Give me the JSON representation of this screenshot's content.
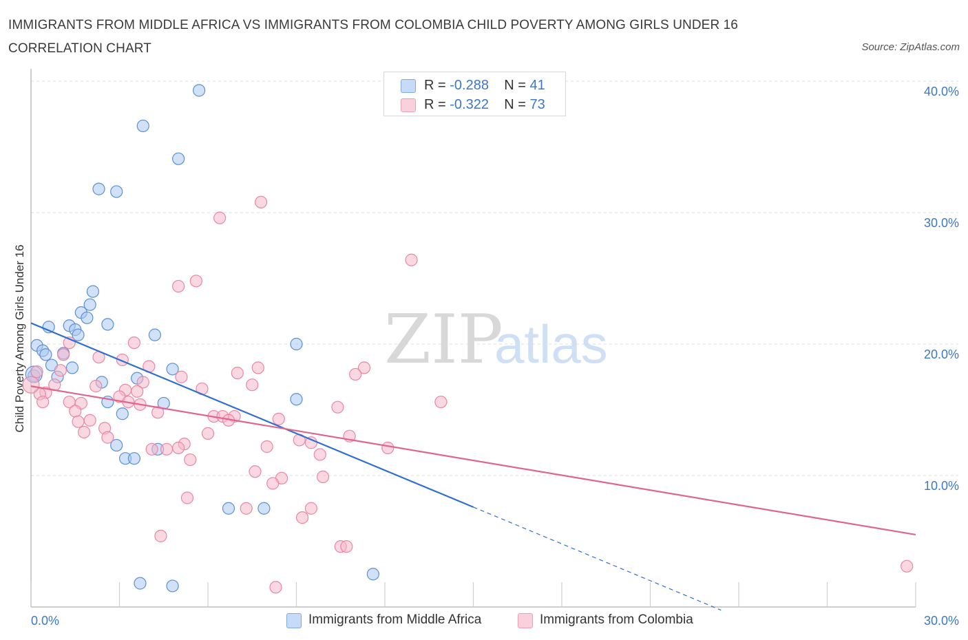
{
  "title": "IMMIGRANTS FROM MIDDLE AFRICA VS IMMIGRANTS FROM COLOMBIA CHILD POVERTY AMONG GIRLS UNDER 16 CORRELATION CHART",
  "source": "Source: ZipAtlas.com",
  "watermark": {
    "zip": "ZIP",
    "atlas": "atlas"
  },
  "legend_top": {
    "rows": [
      {
        "r_label": "R =",
        "r_value": "-0.288",
        "n_label": "N =",
        "n_value": "41",
        "color": "#a9c8f3"
      },
      {
        "r_label": "R =",
        "r_value": "-0.322",
        "n_label": "N =",
        "n_value": "73",
        "color": "#f6b8ca"
      }
    ]
  },
  "legend_bottom": [
    {
      "label": "Immigrants from Middle Africa",
      "color": "#a9c8f3"
    },
    {
      "label": "Immigrants from Colombia",
      "color": "#f6b8ca"
    }
  ],
  "chart_data": {
    "type": "scatter",
    "title": "IMMIGRANTS FROM MIDDLE AFRICA VS IMMIGRANTS FROM COLOMBIA CHILD POVERTY AMONG GIRLS UNDER 16 CORRELATION CHART",
    "xlabel": "",
    "ylabel": "Child Poverty Among Girls Under 16",
    "xlim": [
      0,
      30
    ],
    "ylim": [
      0,
      40
    ],
    "x_tick_labels": [
      "0.0%",
      "30.0%"
    ],
    "y_ticks": [
      10,
      20,
      30,
      40
    ],
    "y_tick_labels": [
      "10.0%",
      "20.0%",
      "30.0%",
      "40.0%"
    ],
    "grid": true,
    "series": [
      {
        "name": "Immigrants from Middle Africa",
        "color": "#a9c8f3",
        "stroke": "#5b8fd6",
        "line_color": "#2f6fd0",
        "trend": {
          "x0": 0,
          "y0": 21.6,
          "x1": 15,
          "y1": 7.6,
          "dash_to_x": 23.4
        },
        "points": [
          [
            5.7,
            39.3
          ],
          [
            3.8,
            36.6
          ],
          [
            5.0,
            34.1
          ],
          [
            2.3,
            31.8
          ],
          [
            2.9,
            31.6
          ],
          [
            2.1,
            24.0
          ],
          [
            2.0,
            23.0
          ],
          [
            1.7,
            22.4
          ],
          [
            1.9,
            22.0
          ],
          [
            1.3,
            21.4
          ],
          [
            2.6,
            21.5
          ],
          [
            0.6,
            21.3
          ],
          [
            1.5,
            21.1
          ],
          [
            1.6,
            20.7
          ],
          [
            4.2,
            20.7
          ],
          [
            0.2,
            19.9
          ],
          [
            0.4,
            19.5
          ],
          [
            0.5,
            19.2
          ],
          [
            1.1,
            19.3
          ],
          [
            0.7,
            18.4
          ],
          [
            1.4,
            18.2
          ],
          [
            9.0,
            20.0
          ],
          [
            4.8,
            18.1
          ],
          [
            0.1,
            17.6
          ],
          [
            0.9,
            17.5
          ],
          [
            2.4,
            17.1
          ],
          [
            3.6,
            17.4
          ],
          [
            2.6,
            15.6
          ],
          [
            4.5,
            15.5
          ],
          [
            3.1,
            14.7
          ],
          [
            9.0,
            15.8
          ],
          [
            2.9,
            12.3
          ],
          [
            4.3,
            12.0
          ],
          [
            3.2,
            11.3
          ],
          [
            3.5,
            11.3
          ],
          [
            6.7,
            7.5
          ],
          [
            7.9,
            7.5
          ],
          [
            11.6,
            2.5
          ],
          [
            3.7,
            1.8
          ],
          [
            4.8,
            1.6
          ],
          [
            0.1,
            17.7
          ]
        ]
      },
      {
        "name": "Immigrants from Colombia",
        "color": "#f6b8ca",
        "stroke": "#e986a6",
        "line_color": "#e0648f",
        "trend": {
          "x0": 0,
          "y0": 16.8,
          "x1": 30,
          "y1": 5.5
        },
        "points": [
          [
            7.8,
            30.8
          ],
          [
            6.4,
            29.6
          ],
          [
            12.9,
            26.4
          ],
          [
            5.6,
            24.8
          ],
          [
            5.0,
            24.4
          ],
          [
            1.3,
            20.1
          ],
          [
            3.5,
            20.1
          ],
          [
            1.1,
            19.2
          ],
          [
            2.3,
            19.0
          ],
          [
            3.1,
            18.8
          ],
          [
            4.0,
            18.3
          ],
          [
            7.7,
            18.2
          ],
          [
            11.3,
            18.2
          ],
          [
            1.0,
            18.0
          ],
          [
            0.2,
            17.9
          ],
          [
            7.0,
            17.8
          ],
          [
            11.0,
            17.7
          ],
          [
            5.1,
            17.5
          ],
          [
            3.8,
            17.1
          ],
          [
            0.8,
            16.9
          ],
          [
            2.2,
            16.8
          ],
          [
            7.5,
            16.9
          ],
          [
            5.8,
            16.6
          ],
          [
            3.2,
            16.5
          ],
          [
            0.5,
            16.3
          ],
          [
            3.6,
            16.4
          ],
          [
            0.3,
            16.2
          ],
          [
            3.0,
            16.0
          ],
          [
            3.3,
            15.6
          ],
          [
            1.3,
            15.6
          ],
          [
            1.7,
            15.5
          ],
          [
            3.7,
            15.4
          ],
          [
            13.9,
            15.6
          ],
          [
            0.4,
            15.6
          ],
          [
            10.4,
            15.2
          ],
          [
            1.5,
            14.9
          ],
          [
            4.3,
            14.8
          ],
          [
            6.2,
            14.5
          ],
          [
            6.5,
            14.5
          ],
          [
            6.9,
            14.5
          ],
          [
            6.7,
            14.2
          ],
          [
            8.4,
            14.3
          ],
          [
            1.6,
            14.1
          ],
          [
            2.0,
            14.2
          ],
          [
            2.5,
            13.6
          ],
          [
            1.8,
            13.3
          ],
          [
            6.0,
            13.2
          ],
          [
            10.8,
            13.0
          ],
          [
            2.6,
            12.9
          ],
          [
            9.1,
            12.7
          ],
          [
            9.5,
            12.5
          ],
          [
            8.0,
            12.2
          ],
          [
            5.2,
            12.4
          ],
          [
            5.0,
            12.1
          ],
          [
            12.1,
            12.1
          ],
          [
            4.1,
            12.0
          ],
          [
            4.6,
            12.0
          ],
          [
            9.8,
            11.6
          ],
          [
            5.4,
            11.2
          ],
          [
            7.6,
            10.3
          ],
          [
            9.9,
            9.9
          ],
          [
            8.5,
            9.8
          ],
          [
            8.2,
            9.4
          ],
          [
            5.3,
            8.3
          ],
          [
            7.3,
            7.5
          ],
          [
            9.5,
            7.5
          ],
          [
            9.2,
            6.8
          ],
          [
            4.4,
            5.4
          ],
          [
            10.5,
            4.6
          ],
          [
            10.7,
            4.6
          ],
          [
            29.7,
            3.1
          ],
          [
            8.3,
            1.5
          ],
          [
            0.0,
            16.9
          ]
        ]
      }
    ]
  }
}
